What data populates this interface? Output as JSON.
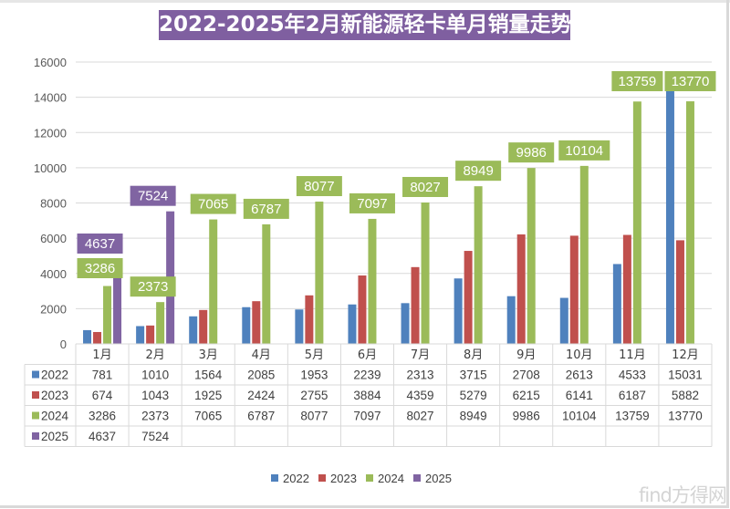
{
  "title": "2022-2025年2月新能源轻卡单月销量走势",
  "watermark": "find方得网",
  "chart_data": {
    "type": "bar",
    "title": "2022-2025年2月新能源轻卡单月销量走势",
    "xlabel": "",
    "ylabel": "",
    "ylim": [
      0,
      16000
    ],
    "yticks": [
      0,
      2000,
      4000,
      6000,
      8000,
      10000,
      12000,
      14000,
      16000
    ],
    "grid": true,
    "legend_position": "bottom",
    "categories": [
      "1月",
      "2月",
      "3月",
      "4月",
      "5月",
      "6月",
      "7月",
      "8月",
      "9月",
      "10月",
      "11月",
      "12月"
    ],
    "series": [
      {
        "name": "2022",
        "color": "#4f81bd",
        "values": [
          781,
          1010,
          1564,
          2085,
          1953,
          2239,
          2313,
          3715,
          2708,
          2613,
          4533,
          15031
        ],
        "show_labels": false
      },
      {
        "name": "2023",
        "color": "#c0504d",
        "values": [
          674,
          1043,
          1925,
          2424,
          2755,
          3884,
          4359,
          5279,
          6215,
          6141,
          6187,
          5882
        ],
        "show_labels": false
      },
      {
        "name": "2024",
        "color": "#9bbb59",
        "values": [
          3286,
          2373,
          7065,
          6787,
          8077,
          7097,
          8027,
          8949,
          9986,
          10104,
          13759,
          13770
        ],
        "show_labels": true
      },
      {
        "name": "2025",
        "color": "#8064a2",
        "values": [
          4637,
          7524,
          null,
          null,
          null,
          null,
          null,
          null,
          null,
          null,
          null,
          null
        ],
        "show_labels": true
      }
    ],
    "data_table": true
  }
}
